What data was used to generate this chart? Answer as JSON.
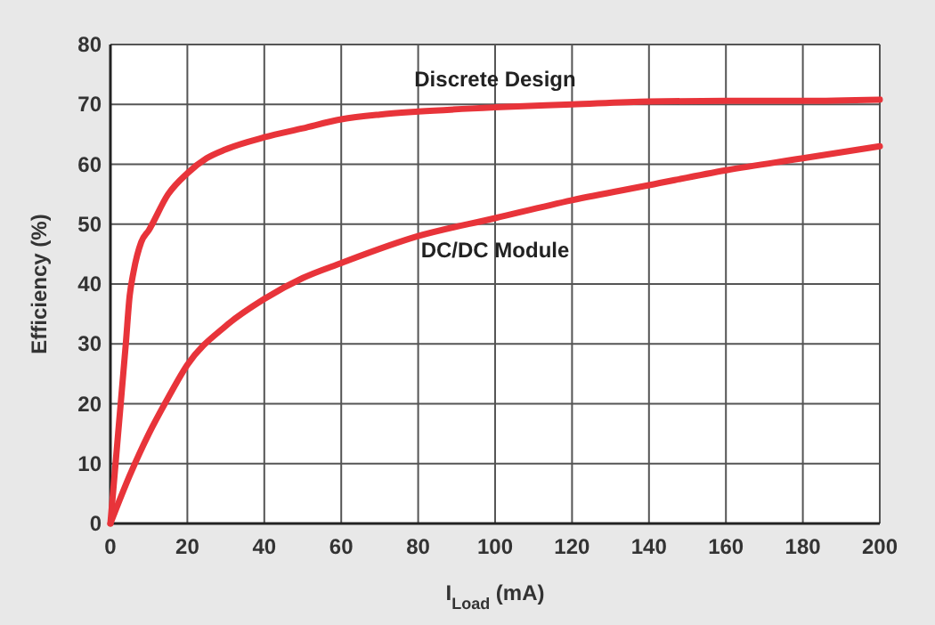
{
  "chart_data": {
    "type": "line",
    "xlabel": "I$_{Load}$ (mA)",
    "ylabel": "Efficiency (%)",
    "xlim": [
      0,
      200
    ],
    "ylim": [
      0,
      80
    ],
    "xticks": [
      0,
      20,
      40,
      60,
      80,
      100,
      120,
      140,
      160,
      180,
      200
    ],
    "yticks": [
      0,
      10,
      20,
      30,
      40,
      50,
      60,
      70,
      80
    ],
    "grid": true,
    "marker": "none",
    "line_style": "solid",
    "series": [
      {
        "name": "Discrete Design",
        "color": "#e8343a",
        "x": [
          0,
          2,
          4,
          5,
          6,
          8,
          10,
          15,
          20,
          25,
          30,
          40,
          50,
          60,
          70,
          80,
          100,
          120,
          140,
          160,
          180,
          200
        ],
        "values": [
          0,
          15,
          30,
          38,
          42,
          47,
          49,
          55,
          58.5,
          61,
          62.5,
          64.5,
          66,
          67.5,
          68.3,
          68.8,
          69.5,
          70,
          70.5,
          70.6,
          70.6,
          70.8
        ]
      },
      {
        "name": "DC/DC Module",
        "color": "#e8343a",
        "x": [
          0,
          5,
          10,
          15,
          20,
          30,
          40,
          50,
          60,
          80,
          100,
          120,
          140,
          160,
          180,
          200
        ],
        "values": [
          0,
          8,
          15,
          21,
          26.5,
          33,
          37.5,
          41,
          43.5,
          48,
          51,
          54,
          56.5,
          59,
          61,
          63
        ]
      }
    ]
  }
}
